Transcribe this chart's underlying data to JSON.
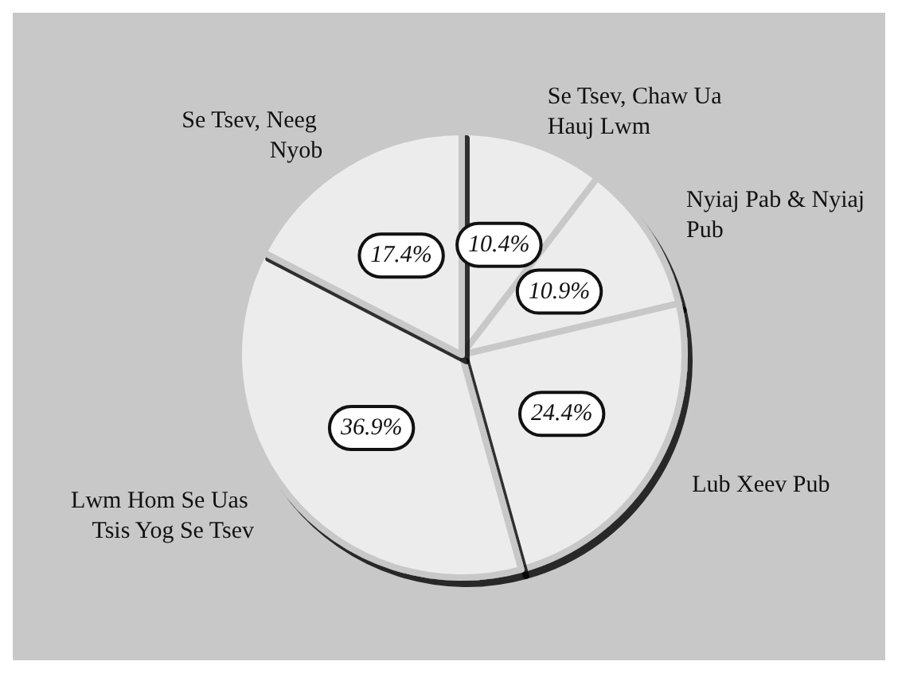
{
  "chart_data": {
    "type": "pie",
    "categories": [
      "Se Tsev, Chaw Ua Hauj Lwm",
      "Nyiaj Pab & Nyiaj Pub",
      "Lub Xeev Pub",
      "Lwm Hom Se Uas Tsis Yog Se Tsev",
      "Se Tsev, Neeg Nyob"
    ],
    "values": [
      10.4,
      10.9,
      24.4,
      36.9,
      17.4
    ],
    "value_labels": [
      "10.4%",
      "10.9%",
      "24.4%",
      "36.9%",
      "17.4%"
    ],
    "colors": [
      "#ececec",
      "#ececec",
      "#ececec",
      "#ececec",
      "#ececec"
    ],
    "legend": false
  }
}
